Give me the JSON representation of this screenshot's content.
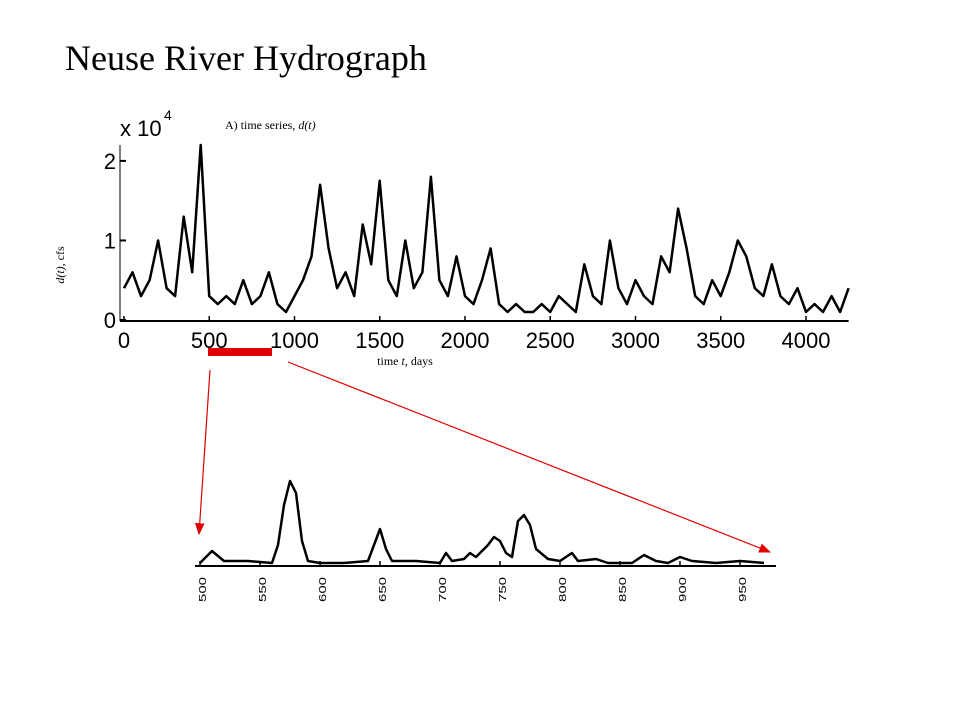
{
  "title": "Neuse River Hydrograph",
  "chart_data": [
    {
      "type": "line",
      "annotation": [
        "A) time series,",
        "d(t)"
      ],
      "axis_multiplier": {
        "base": "x 10",
        "exponent": 4
      },
      "xlabel": [
        "time",
        "t,",
        "days"
      ],
      "ylabel": [
        "d(t),",
        "cfs"
      ],
      "color": "#000000",
      "xlim": [
        0,
        4250
      ],
      "ylim": [
        0,
        2.2
      ],
      "xticks": [
        0,
        500,
        1000,
        1500,
        2000,
        2500,
        3000,
        3500,
        4000
      ],
      "yticks": [
        0,
        1,
        2
      ],
      "x": [
        0,
        50,
        100,
        150,
        200,
        250,
        300,
        350,
        400,
        450,
        500,
        550,
        600,
        650,
        700,
        750,
        800,
        850,
        900,
        950,
        1000,
        1050,
        1100,
        1150,
        1200,
        1250,
        1300,
        1350,
        1400,
        1450,
        1500,
        1550,
        1600,
        1650,
        1700,
        1750,
        1800,
        1850,
        1900,
        1950,
        2000,
        2050,
        2100,
        2150,
        2200,
        2250,
        2300,
        2350,
        2400,
        2450,
        2500,
        2550,
        2600,
        2650,
        2700,
        2750,
        2800,
        2850,
        2900,
        2950,
        3000,
        3050,
        3100,
        3150,
        3200,
        3250,
        3300,
        3350,
        3400,
        3450,
        3500,
        3550,
        3600,
        3650,
        3700,
        3750,
        3800,
        3850,
        3900,
        3950,
        4000,
        4050,
        4100,
        4150,
        4200,
        4250
      ],
      "values": [
        0.4,
        0.6,
        0.3,
        0.5,
        1.0,
        0.4,
        0.3,
        1.3,
        0.6,
        2.2,
        0.3,
        0.2,
        0.3,
        0.2,
        0.5,
        0.2,
        0.3,
        0.6,
        0.2,
        0.1,
        0.3,
        0.5,
        0.8,
        1.7,
        0.9,
        0.4,
        0.6,
        0.3,
        1.2,
        0.7,
        1.75,
        0.5,
        0.3,
        1.0,
        0.4,
        0.6,
        1.8,
        0.5,
        0.3,
        0.8,
        0.3,
        0.2,
        0.5,
        0.9,
        0.2,
        0.1,
        0.2,
        0.1,
        0.1,
        0.2,
        0.1,
        0.3,
        0.2,
        0.1,
        0.7,
        0.3,
        0.2,
        1.0,
        0.4,
        0.2,
        0.5,
        0.3,
        0.2,
        0.8,
        0.6,
        1.4,
        0.9,
        0.3,
        0.2,
        0.5,
        0.3,
        0.6,
        1.0,
        0.8,
        0.4,
        0.3,
        0.7,
        0.3,
        0.2,
        0.4,
        0.1,
        0.2,
        0.1,
        0.3,
        0.1,
        0.4
      ]
    },
    {
      "type": "line",
      "color": "#000000",
      "xlim": [
        496,
        980
      ],
      "ylim": [
        0,
        2.2
      ],
      "xticks": [
        500,
        550,
        600,
        650,
        700,
        750,
        800,
        850,
        900,
        950
      ],
      "x": [
        500,
        510,
        520,
        540,
        560,
        565,
        570,
        575,
        580,
        585,
        590,
        600,
        620,
        640,
        645,
        650,
        655,
        660,
        680,
        700,
        705,
        710,
        720,
        725,
        730,
        740,
        745,
        750,
        755,
        760,
        765,
        770,
        775,
        780,
        790,
        800,
        810,
        815,
        830,
        840,
        860,
        870,
        880,
        890,
        900,
        910,
        930,
        950,
        970
      ],
      "values": [
        0.05,
        0.35,
        0.1,
        0.1,
        0.05,
        0.5,
        1.5,
        2.1,
        1.8,
        0.6,
        0.1,
        0.05,
        0.05,
        0.1,
        0.5,
        0.9,
        0.4,
        0.1,
        0.1,
        0.05,
        0.3,
        0.1,
        0.15,
        0.3,
        0.2,
        0.5,
        0.7,
        0.6,
        0.3,
        0.2,
        1.1,
        1.25,
        1.0,
        0.4,
        0.15,
        0.1,
        0.3,
        0.1,
        0.15,
        0.05,
        0.05,
        0.25,
        0.1,
        0.05,
        0.2,
        0.1,
        0.05,
        0.1,
        0.05
      ]
    }
  ]
}
